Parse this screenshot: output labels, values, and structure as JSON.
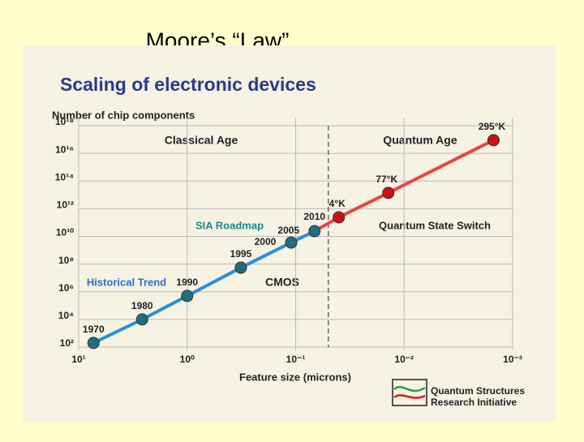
{
  "slide_title": "Moore’s “Law”",
  "chart_data": {
    "type": "scatter-line",
    "title": "Scaling of electronic devices",
    "y_label": "Number of chip components",
    "x_label": "Feature size (microns)",
    "x_scale": "log",
    "y_scale": "log",
    "grid": true,
    "xlim": [
      10,
      0.001
    ],
    "xticks": [
      {
        "value": 10,
        "label": "10¹"
      },
      {
        "value": 1,
        "label": "10⁰"
      },
      {
        "value": 0.1,
        "label": "10⁻¹"
      },
      {
        "value": 0.01,
        "label": "10⁻²"
      },
      {
        "value": 0.001,
        "label": "10⁻³"
      }
    ],
    "ylim": [
      100,
      1e+18
    ],
    "yticks": [
      {
        "value": 100,
        "label": "10²"
      },
      {
        "value": 10000,
        "label": "10⁴"
      },
      {
        "value": 1000000,
        "label": "10⁶"
      },
      {
        "value": 100000000,
        "label": "10⁸"
      },
      {
        "value": 10000000000,
        "label": "10¹⁰"
      },
      {
        "value": 1000000000000,
        "label": "10¹²"
      },
      {
        "value": 100000000000000,
        "label": "10¹⁴"
      },
      {
        "value": 10000000000000000,
        "label": "10¹⁶"
      },
      {
        "value": 1000000000000000000,
        "label": "10¹⁸"
      }
    ],
    "divider_x": 0.05,
    "series": [
      {
        "color": "#2b8fd8",
        "point_color": "#1f6e7e",
        "x": [
          7.3,
          2.6,
          1,
          0.32,
          0.11,
          0.067
        ],
        "values": [
          200,
          10000,
          500000,
          55000000,
          3600000000,
          24000000000
        ],
        "labels": [
          "1970",
          "1980",
          "1990",
          "1995",
          "2000",
          "2005"
        ]
      },
      {
        "color": "#e84545",
        "point_color": "#cc1111",
        "x": [
          0.04,
          0.014,
          0.0015
        ],
        "values": [
          240000000000,
          14000000000000,
          90000000000000000
        ],
        "labels": [
          "4°K",
          "77°K",
          "295°K"
        ],
        "year_labels": [
          "2010",
          null,
          null
        ]
      }
    ],
    "annotations": [
      "Classical Age",
      "Quantum Age",
      "SIA Roadmap",
      "Historical Trend",
      "CMOS",
      "Quantum State Switch"
    ],
    "logo_text": [
      "Quantum Structures",
      "Research Initiative"
    ]
  }
}
